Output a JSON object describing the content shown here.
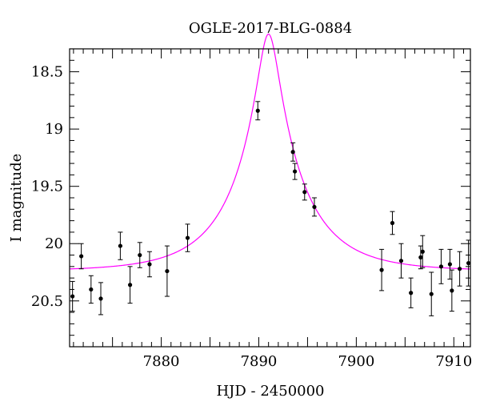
{
  "chart_data": {
    "type": "scatter",
    "title": "OGLE-2017-BLG-0884",
    "xlabel": "HJD - 2450000",
    "ylabel": "I magnitude",
    "xlim": [
      7870.6,
      7911.7
    ],
    "ylim": [
      20.9,
      18.3
    ],
    "y_inverted": true,
    "grid": false,
    "colors": {
      "model": "#ff00ff",
      "points": "#000000",
      "frame": "#000000"
    },
    "x_ticks": [
      {
        "value": 7880,
        "label": "7880"
      },
      {
        "value": 7890,
        "label": "7890"
      },
      {
        "value": 7900,
        "label": "7900"
      },
      {
        "value": 7910,
        "label": "7910"
      }
    ],
    "y_ticks": [
      {
        "value": 18.5,
        "label": "18.5"
      },
      {
        "value": 19.0,
        "label": "19"
      },
      {
        "value": 19.5,
        "label": "19.5"
      },
      {
        "value": 20.0,
        "label": "20"
      },
      {
        "value": 20.5,
        "label": "20.5"
      }
    ],
    "x_minor_step": 1,
    "x_major_step": 5,
    "y_minor_step": 0.1,
    "model": {
      "t0": 7891.0,
      "u0": 0.15,
      "tE": 6.9,
      "mbase": 20.24
    },
    "points": [
      {
        "x": 7870.9,
        "y": 20.46,
        "err": 0.13
      },
      {
        "x": 7871.8,
        "y": 20.11,
        "err": 0.11
      },
      {
        "x": 7872.8,
        "y": 20.4,
        "err": 0.12
      },
      {
        "x": 7873.8,
        "y": 20.48,
        "err": 0.14
      },
      {
        "x": 7875.8,
        "y": 20.02,
        "err": 0.12
      },
      {
        "x": 7876.8,
        "y": 20.36,
        "err": 0.16
      },
      {
        "x": 7877.8,
        "y": 20.1,
        "err": 0.11
      },
      {
        "x": 7878.8,
        "y": 20.18,
        "err": 0.11
      },
      {
        "x": 7880.6,
        "y": 20.24,
        "err": 0.22
      },
      {
        "x": 7882.7,
        "y": 19.95,
        "err": 0.12
      },
      {
        "x": 7889.9,
        "y": 18.84,
        "err": 0.08
      },
      {
        "x": 7893.5,
        "y": 19.2,
        "err": 0.08
      },
      {
        "x": 7893.7,
        "y": 19.37,
        "err": 0.07
      },
      {
        "x": 7894.7,
        "y": 19.55,
        "err": 0.07
      },
      {
        "x": 7895.7,
        "y": 19.68,
        "err": 0.08
      },
      {
        "x": 7902.6,
        "y": 20.23,
        "err": 0.18
      },
      {
        "x": 7903.7,
        "y": 19.82,
        "err": 0.1
      },
      {
        "x": 7904.6,
        "y": 20.15,
        "err": 0.15
      },
      {
        "x": 7905.6,
        "y": 20.43,
        "err": 0.13
      },
      {
        "x": 7906.6,
        "y": 20.12,
        "err": 0.1
      },
      {
        "x": 7906.8,
        "y": 20.07,
        "err": 0.14
      },
      {
        "x": 7907.7,
        "y": 20.44,
        "err": 0.19
      },
      {
        "x": 7908.7,
        "y": 20.2,
        "err": 0.15
      },
      {
        "x": 7909.6,
        "y": 20.18,
        "err": 0.13
      },
      {
        "x": 7909.8,
        "y": 20.41,
        "err": 0.18
      },
      {
        "x": 7910.6,
        "y": 20.22,
        "err": 0.15
      },
      {
        "x": 7911.5,
        "y": 20.17,
        "err": 0.2
      }
    ]
  }
}
